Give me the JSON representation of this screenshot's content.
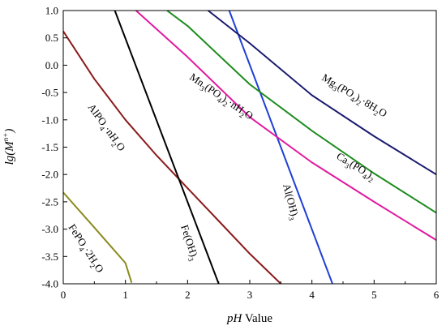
{
  "chart_data": {
    "type": "line",
    "title": "",
    "xlabel": {
      "italic": "pH",
      "rest": " Value"
    },
    "ylabel": {
      "pre": "lg(",
      "base": "M",
      "sup": "n+",
      "post": ")"
    },
    "xlim": [
      0,
      6
    ],
    "ylim": [
      -4.0,
      1.0
    ],
    "x_ticks": [
      "0",
      "1",
      "2",
      "3",
      "4",
      "5",
      "6"
    ],
    "y_ticks": [
      "1.0",
      "0.5",
      "0.0",
      "-0.5",
      "-1.0",
      "-1.5",
      "-2.0",
      "-2.5",
      "-3.0",
      "-3.5",
      "-4.0"
    ],
    "grid": false,
    "legend": "none",
    "series": [
      {
        "name": "FePO4·2H2O",
        "color": "#8b8b1e",
        "x": [
          0.0,
          0.5,
          1.0,
          1.1
        ],
        "y": [
          -2.33,
          -2.97,
          -3.62,
          -3.98
        ]
      },
      {
        "name": "AlPO4·nH2O",
        "color": "#8b1a1a",
        "x": [
          0.0,
          0.5,
          1.0,
          1.5,
          2.0,
          2.5,
          3.0,
          3.5
        ],
        "y": [
          0.62,
          -0.25,
          -1.0,
          -1.65,
          -2.25,
          -2.85,
          -3.45,
          -4.0
        ]
      },
      {
        "name": "Fe(OH)3",
        "color": "#000000",
        "x": [
          0.83,
          2.5
        ],
        "y": [
          1.0,
          -4.0
        ]
      },
      {
        "name": "Al(OH)3",
        "color": "#1f3fd6",
        "x": [
          2.67,
          4.33
        ],
        "y": [
          1.0,
          -4.0
        ]
      },
      {
        "name": "Mn3(PO4)2·nH2O",
        "color": "#e01aa0",
        "x": [
          1.17,
          2.0,
          3.0,
          4.0,
          5.0,
          6.0
        ],
        "y": [
          1.0,
          0.15,
          -0.95,
          -1.78,
          -2.5,
          -3.2
        ]
      },
      {
        "name": "Ca3(PO4)2",
        "color": "#1e8c1e",
        "x": [
          1.67,
          2.0,
          3.0,
          4.0,
          5.0,
          6.0
        ],
        "y": [
          1.0,
          0.72,
          -0.35,
          -1.2,
          -1.98,
          -2.7
        ]
      },
      {
        "name": "Mg3(PO4)2·8H2O",
        "color": "#1a1a6e",
        "x": [
          2.33,
          3.0,
          4.0,
          5.0,
          6.0
        ],
        "y": [
          1.0,
          0.4,
          -0.55,
          -1.3,
          -2.0
        ]
      }
    ],
    "annotations": [
      {
        "key": "fepo4",
        "parts": [
          [
            "FePO",
            null
          ],
          [
            "4",
            "sub"
          ],
          [
            "·2H",
            null
          ],
          [
            "2",
            "sub"
          ],
          [
            "O",
            null
          ]
        ]
      },
      {
        "key": "alpo4",
        "parts": [
          [
            "AlPO",
            null
          ],
          [
            "4",
            "sub"
          ],
          [
            "·nH",
            null
          ],
          [
            "2",
            "sub"
          ],
          [
            "O",
            null
          ]
        ]
      },
      {
        "key": "feoh3",
        "parts": [
          [
            "Fe(OH)",
            null
          ],
          [
            "3",
            "sub"
          ]
        ]
      },
      {
        "key": "aloh3",
        "parts": [
          [
            "Al(OH)",
            null
          ],
          [
            "3",
            "sub"
          ]
        ]
      },
      {
        "key": "mn3po42",
        "parts": [
          [
            "Mn",
            null
          ],
          [
            "3",
            "sub"
          ],
          [
            "(PO",
            null
          ],
          [
            "4",
            "sub"
          ],
          [
            ")",
            null
          ],
          [
            "2",
            "sub"
          ],
          [
            "·nH",
            null
          ],
          [
            "2",
            "sub"
          ],
          [
            "O",
            null
          ]
        ]
      },
      {
        "key": "ca3po42",
        "parts": [
          [
            "Ca",
            null
          ],
          [
            "3",
            "sub"
          ],
          [
            "(PO",
            null
          ],
          [
            "4",
            "sub"
          ],
          [
            ")",
            null
          ],
          [
            "2",
            "sub"
          ]
        ]
      },
      {
        "key": "mg3po42",
        "parts": [
          [
            "Mg",
            null
          ],
          [
            "3",
            "sub"
          ],
          [
            "(PO",
            null
          ],
          [
            "4",
            "sub"
          ],
          [
            ")",
            null
          ],
          [
            "2",
            "sub"
          ],
          [
            "·8H",
            null
          ],
          [
            "2",
            "sub"
          ],
          [
            "O",
            null
          ]
        ]
      }
    ]
  }
}
